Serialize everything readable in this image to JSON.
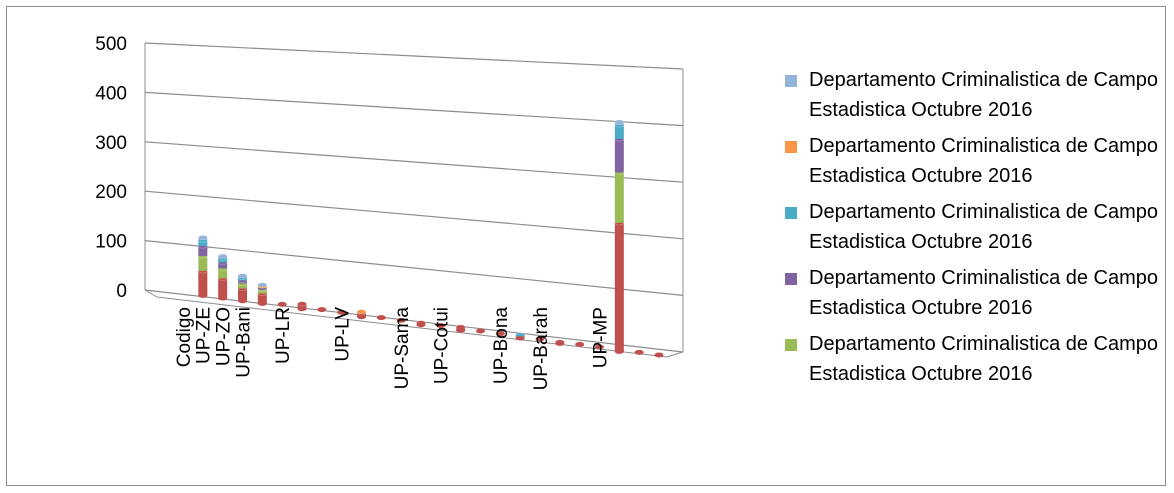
{
  "chart_data": {
    "type": "bar",
    "stacked": true,
    "three_d": true,
    "title": "",
    "xlabel": "",
    "ylabel": "",
    "ylim": [
      0,
      500
    ],
    "yticks": [
      0,
      100,
      200,
      300,
      400,
      500
    ],
    "grid": true,
    "legend_position": "right",
    "categories": [
      "Codigo",
      "UP-ZE",
      "UP-ZO",
      "UP-Bani",
      "UP-LR",
      "UP-LV",
      "UP-Sama",
      "UP-Cotui",
      "UP-Bona",
      "UP-Barah",
      "UP-MP"
    ],
    "series": [
      {
        "name": "Departamento Criminalistica de Campo Estadistica Octubre 2016",
        "color": "#c0504d",
        "values": [
          50,
          40,
          25,
          20,
          10,
          8,
          4,
          6,
          4,
          3,
          230
        ]
      },
      {
        "name": "Departamento Criminalistica de Campo Estadistica Octubre 2016",
        "color": "#9bbb59",
        "values": [
          30,
          20,
          10,
          8,
          0,
          0,
          0,
          0,
          0,
          0,
          90
        ]
      },
      {
        "name": "Departamento Criminalistica de Campo Estadistica Octubre 2016",
        "color": "#8064a2",
        "values": [
          20,
          12,
          6,
          3,
          0,
          0,
          0,
          0,
          0,
          0,
          60
        ]
      },
      {
        "name": "Departamento Criminalistica de Campo Estadistica Octubre 2016",
        "color": "#4bacc6",
        "values": [
          12,
          8,
          6,
          0,
          0,
          0,
          0,
          0,
          2,
          0,
          25
        ]
      },
      {
        "name": "Departamento Criminalistica de Campo Estadistica Octubre 2016",
        "color": "#f79646",
        "values": [
          0,
          0,
          0,
          4,
          0,
          2,
          0,
          0,
          0,
          0,
          0
        ]
      },
      {
        "name": "Departamento Criminalistica de Campo Estadistica Octubre 2016",
        "color": "#95b3d7",
        "values": [
          5,
          4,
          3,
          2,
          0,
          0,
          0,
          0,
          0,
          0,
          5
        ]
      }
    ]
  },
  "legend": {
    "items": [
      {
        "label": "Departamento Criminalistica de Campo Estadistica Octubre 2016",
        "color": "#95b3d7"
      },
      {
        "label": "Departamento Criminalistica de Campo Estadistica Octubre 2016",
        "color": "#f79646"
      },
      {
        "label": "Departamento Criminalistica de Campo Estadistica Octubre 2016",
        "color": "#4bacc6"
      },
      {
        "label": "Departamento Criminalistica de Campo Estadistica Octubre 2016",
        "color": "#8064a2"
      },
      {
        "label": "Departamento Criminalistica de Campo Estadistica Octubre 2016",
        "color": "#9bbb59"
      }
    ]
  },
  "colors": {
    "grid": "#8c8c8c",
    "frame": "#8c8c8c"
  }
}
